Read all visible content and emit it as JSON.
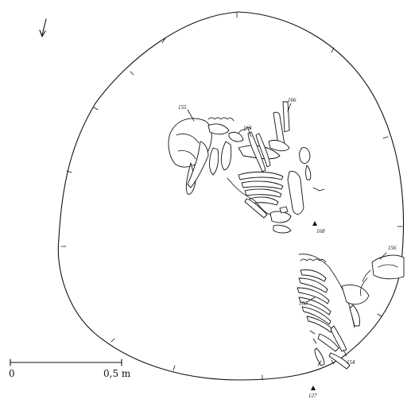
{
  "scale_bar": {
    "start_label": "0",
    "end_label": "0,5 m"
  },
  "labels": [
    {
      "id": "155",
      "text": "155"
    },
    {
      "id": "166",
      "text": "166"
    },
    {
      "id": "163",
      "text": "163"
    },
    {
      "id": "168",
      "text": "168"
    },
    {
      "id": "156",
      "text": "156"
    },
    {
      "id": "160",
      "text": "160"
    },
    {
      "id": "154",
      "text": "154"
    },
    {
      "id": "127",
      "text": "127"
    }
  ]
}
